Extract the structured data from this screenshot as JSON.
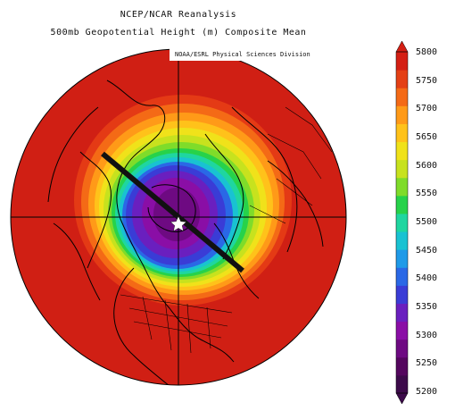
{
  "header": {
    "title_line1": "NCEP/NCAR Reanalysis",
    "title_line2": "500mb Geopotential Height (m) Composite Mean"
  },
  "credit": "NOAA/ESRL Physical Sciences Division",
  "map": {
    "projection": "north-polar-stereographic",
    "marker_icon": "star-icon",
    "marker_color": "#ffffff",
    "transect_color": "#111111"
  },
  "colorbar": {
    "orientation": "vertical",
    "labels": [
      "5800",
      "5750",
      "5700",
      "5650",
      "5600",
      "5550",
      "5500",
      "5450",
      "5400",
      "5350",
      "5300",
      "5250",
      "5200"
    ],
    "colors": [
      "#3c0a4a",
      "#54065e",
      "#6e0a82",
      "#8a0ea6",
      "#6a1fbf",
      "#3a3cd6",
      "#2a68e6",
      "#1f9ae8",
      "#19c2d2",
      "#1fd6a0",
      "#27d24a",
      "#7fdc2a",
      "#c7e21e",
      "#f0e21a",
      "#ffc21a",
      "#ff9a18",
      "#f46a16",
      "#e44015",
      "#d41f14"
    ]
  }
}
